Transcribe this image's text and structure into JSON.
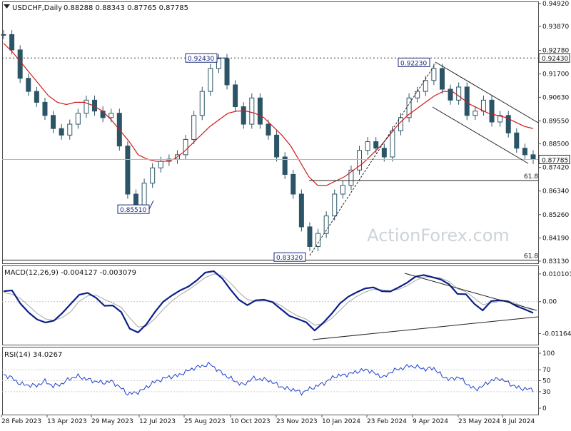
{
  "header": {
    "symbol_text": "USDCHF,Daily",
    "ohlc_text": "0.88288 0.88343 0.87765 0.87785"
  },
  "watermark": "ActionForex.com",
  "colors": {
    "candle": "#2b5566",
    "ma": "#d11b1b",
    "macd": "#0b1f8a",
    "signal": "#a8a8a8",
    "rsi": "#1f3fd0",
    "trend": "#000000"
  },
  "chart_data": [
    {
      "type": "line",
      "name": "price",
      "y_ticks": [
        "0.94920",
        "0.93870",
        "0.92780",
        "0.91700",
        "0.90630",
        "0.89550",
        "0.88500",
        "0.87420",
        "0.86340",
        "0.85260",
        "0.84190",
        "0.83130"
      ],
      "ylim": [
        0.8313,
        0.9492
      ],
      "x_tick_labels": [
        "28 Feb 2023",
        "13 Apr 2023",
        "29 May 2023",
        "12 Jul 2023",
        "25 Aug 2023",
        "10 Oct 2023",
        "23 Nov 2023",
        "10 Jan 2024",
        "23 Feb 2024",
        "9 Apr 2024",
        "23 May 2024",
        "8 Jul 2024"
      ],
      "series": [
        {
          "values": [
            0.935,
            0.928,
            0.915,
            0.909,
            0.904,
            0.898,
            0.892,
            0.889,
            0.894,
            0.899,
            0.905,
            0.9,
            0.897,
            0.899,
            0.884,
            0.862,
            0.857,
            0.867,
            0.874,
            0.877,
            0.878,
            0.88,
            0.887,
            0.898,
            0.909,
            0.9195,
            0.924,
            0.912,
            0.902,
            0.894,
            0.906,
            0.894,
            0.889,
            0.879,
            0.871,
            0.862,
            0.847,
            0.838,
            0.844,
            0.852,
            0.862,
            0.866,
            0.873,
            0.882,
            0.886,
            0.883,
            0.879,
            0.891,
            0.897,
            0.906,
            0.909,
            0.914,
            0.9195,
            0.91,
            0.905,
            0.911,
            0.898,
            0.9,
            0.905,
            0.895,
            0.898,
            0.89,
            0.883,
            0.88,
            0.87785
          ]
        },
        {
          "values": [
            0.931,
            0.927,
            0.922,
            0.917,
            0.912,
            0.907,
            0.904,
            0.903,
            0.904,
            0.904,
            0.9025,
            0.9,
            0.896,
            0.891,
            0.886,
            0.88,
            0.878,
            0.877,
            0.877,
            0.878,
            0.881,
            0.885,
            0.889,
            0.893,
            0.896,
            0.899,
            0.9,
            0.9,
            0.899,
            0.897,
            0.893,
            0.889,
            0.884,
            0.877,
            0.87,
            0.866,
            0.866,
            0.868,
            0.87,
            0.873,
            0.876,
            0.88,
            0.884,
            0.889,
            0.894,
            0.898,
            0.901,
            0.904,
            0.907,
            0.909,
            0.909,
            0.906,
            0.903,
            0.901,
            0.899,
            0.898,
            0.897,
            0.895,
            0.893,
            0.892
          ]
        }
      ],
      "levels": [
        {
          "value": 0.9243,
          "label": "0.92430"
        },
        {
          "value": 0.87785,
          "label": "0.87785"
        },
        {
          "value": 0.8682,
          "label": "61.8"
        },
        {
          "value": 0.8318,
          "label": "61.8"
        }
      ],
      "annotations": [
        {
          "label": "0.92430",
          "value": 0.9243
        },
        {
          "label": "0.92230",
          "value": 0.9223
        },
        {
          "label": "0.85510",
          "value": 0.8551
        },
        {
          "label": "0.83320",
          "value": 0.8332
        }
      ]
    },
    {
      "type": "line",
      "name": "MACD",
      "indicator_label": "MACD(12,26,9) -0.004127 -0.003079",
      "y_ticks": [
        "0.010101",
        "0.00",
        "-0.011645"
      ],
      "ylim": [
        -0.0154,
        0.0124
      ],
      "series": [
        {
          "values": [
            0.0038,
            0.0041,
            -0.0007,
            -0.004,
            -0.0065,
            -0.0076,
            -0.0069,
            -0.0041,
            -0.0008,
            0.0025,
            0.0032,
            0.0014,
            -0.0015,
            -0.0014,
            -0.0038,
            -0.0098,
            -0.0112,
            -0.0082,
            -0.0038,
            0,
            0.0022,
            0.0041,
            0.0055,
            0.0078,
            0.0106,
            0.0111,
            0.0085,
            0.0044,
            0.0007,
            -0.0013,
            0.0005,
            0.0007,
            -0.0002,
            -0.0027,
            -0.0052,
            -0.0063,
            -0.0075,
            -0.0105,
            -0.0078,
            -0.0045,
            -0.0007,
            0.0018,
            0.0034,
            0.0048,
            0.0052,
            0.0038,
            0.0037,
            0.0052,
            0.0069,
            0.0091,
            0.0097,
            0.0089,
            0.0081,
            0.0063,
            0.0028,
            0.0027,
            -0.0008,
            -0.0032,
            0.0002,
            0.0005,
            0.0001,
            -0.0016,
            -0.0028,
            -0.0041
          ]
        },
        {
          "values": [
            0.0033,
            0.0027,
            0.0012,
            -0.0015,
            -0.0043,
            -0.0063,
            -0.0068,
            -0.0058,
            -0.0036,
            0.0001,
            0.0021,
            0.0024,
            0.0008,
            -0.0005,
            -0.0021,
            -0.0059,
            -0.0092,
            -0.0089,
            -0.0062,
            -0.0028,
            0.0002,
            0.0025,
            0.0043,
            0.0065,
            0.0088,
            0.0101,
            0.0095,
            0.0068,
            0.0034,
            0.0008,
            0.0001,
            0.0003,
            0.0001,
            -0.0014,
            -0.0035,
            -0.0052,
            -0.0064,
            -0.0085,
            -0.0081,
            -0.0062,
            -0.0032,
            -0.0002,
            0.0019,
            0.0035,
            0.0045,
            0.0043,
            0.004,
            0.0045,
            0.0058,
            0.0077,
            0.009,
            0.009,
            0.0086,
            0.0073,
            0.0047,
            0.0036,
            0.0013,
            -0.0011,
            -0.0005,
            0.0001,
            0.0003,
            -0.0007,
            -0.002,
            -0.0031
          ]
        }
      ]
    },
    {
      "type": "line",
      "name": "RSI",
      "indicator_label": "RSI(14) 34.0267",
      "y_ticks": [
        "100",
        "70",
        "50",
        "30",
        "0"
      ],
      "ylim": [
        0,
        100
      ],
      "series": [
        {
          "values": [
            61,
            55,
            44,
            42,
            41,
            49,
            40,
            44,
            54,
            58,
            53,
            49,
            46,
            49,
            39,
            26,
            28,
            35,
            46,
            52,
            57,
            59,
            66,
            73,
            77,
            80,
            68,
            58,
            49,
            42,
            54,
            53,
            51,
            43,
            36,
            34,
            28,
            35,
            41,
            48,
            58,
            60,
            63,
            68,
            70,
            62,
            56,
            68,
            72,
            77,
            75,
            71,
            73,
            58,
            52,
            57,
            44,
            34,
            41,
            51,
            54,
            46,
            38,
            35,
            34
          ]
        }
      ]
    }
  ]
}
